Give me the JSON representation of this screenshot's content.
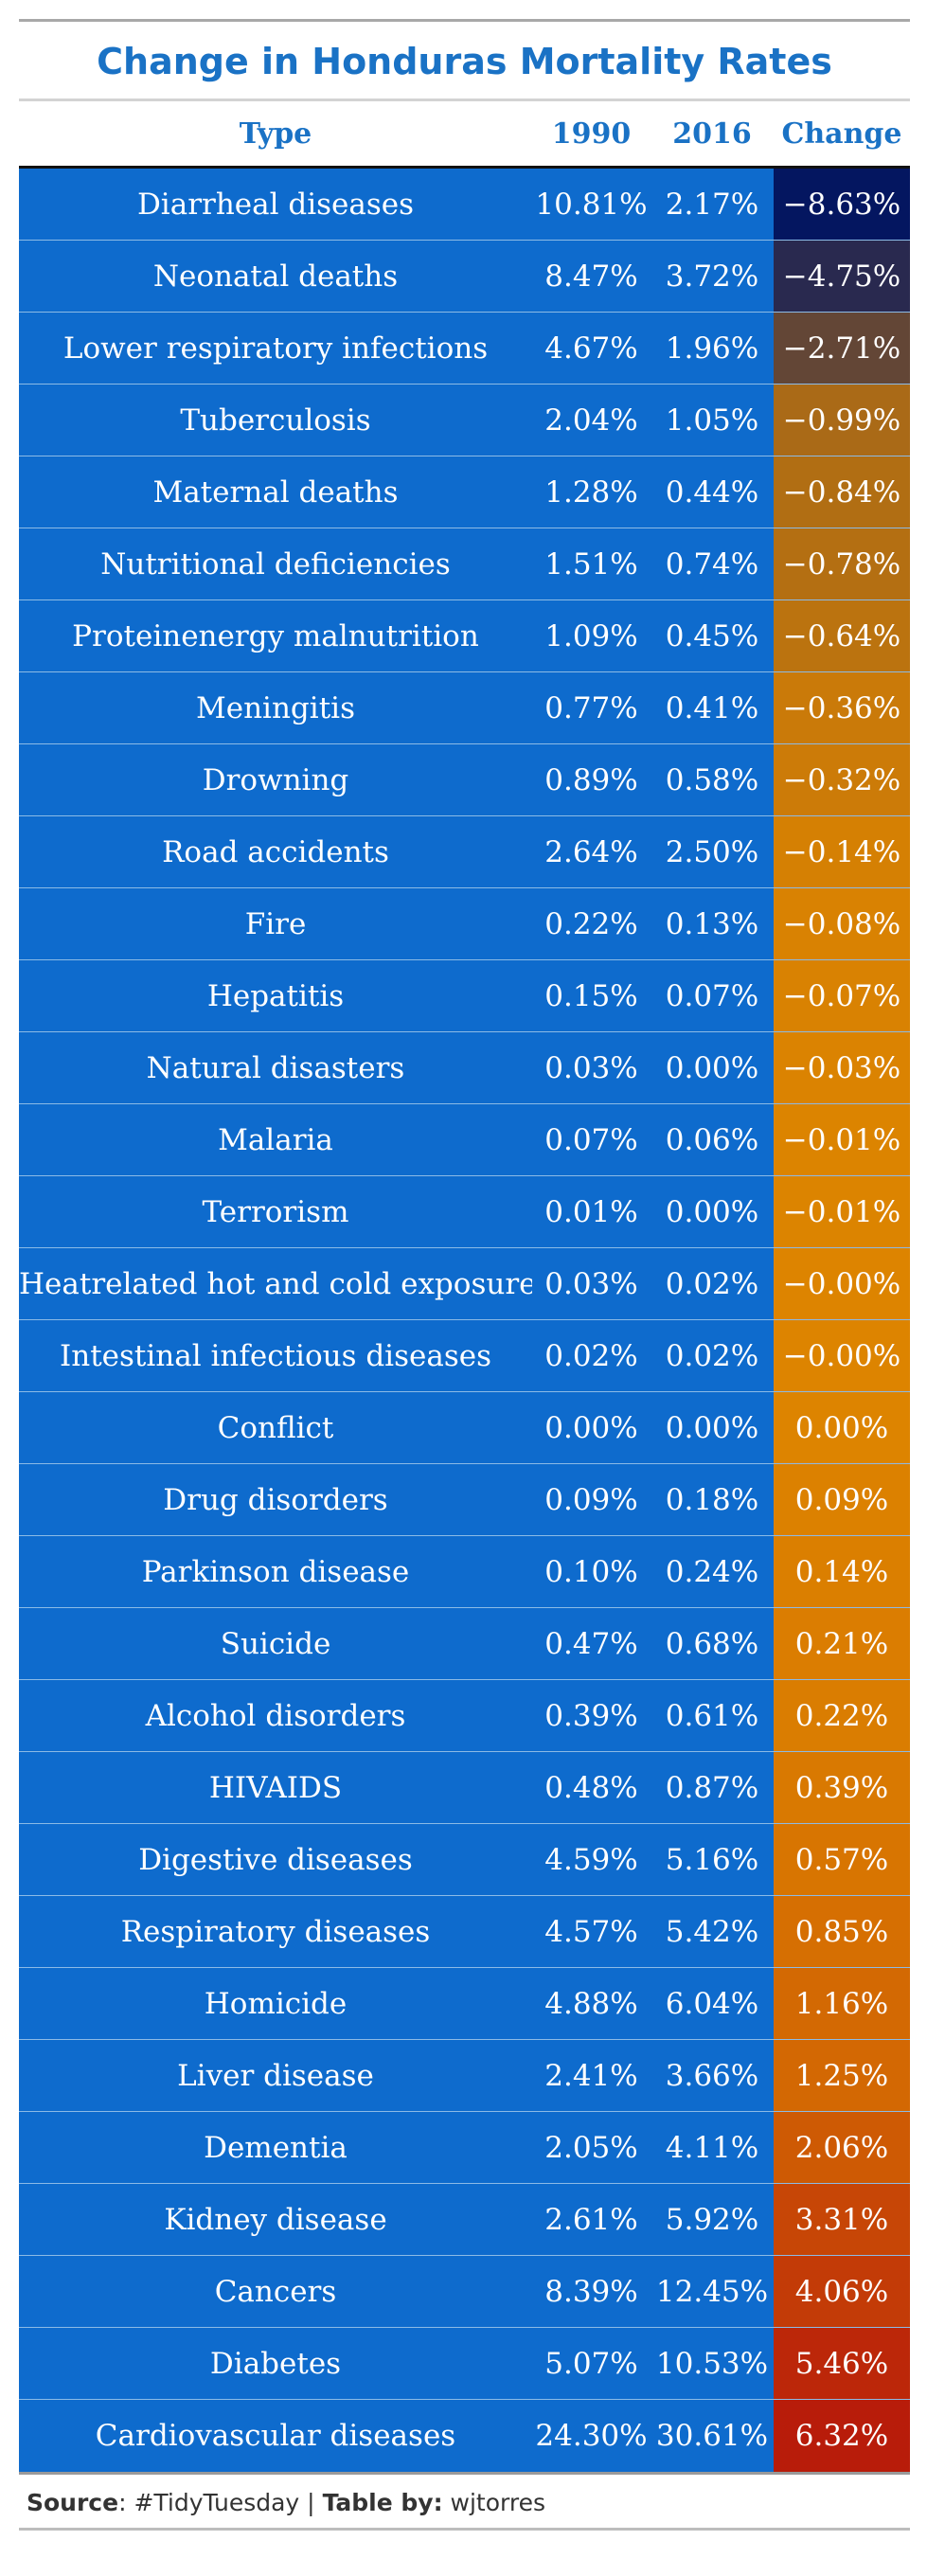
{
  "title": "Change in Honduras Mortality Rates",
  "source": {
    "label_source": "Source",
    "source_text": ": #TidyTuesday | ",
    "label_table": "Table by:",
    "author": " wjtorres"
  },
  "colors": {
    "title": "#1a72c5",
    "row_fill": "#0e6bcd",
    "scale_low": "#041660",
    "scale_mid": "#dd8400",
    "scale_high": "#b81c0a"
  },
  "chart_data": {
    "type": "table",
    "title": "Change in Honduras Mortality Rates",
    "columns": [
      "Type",
      "1990",
      "2016",
      "Change"
    ],
    "rows": [
      {
        "type": "Diarrheal diseases",
        "y1990": "10.81%",
        "y2016": "2.17%",
        "change": "−8.63%",
        "change_value": -8.63
      },
      {
        "type": "Neonatal deaths",
        "y1990": "8.47%",
        "y2016": "3.72%",
        "change": "−4.75%",
        "change_value": -4.75
      },
      {
        "type": "Lower respiratory infections",
        "y1990": "4.67%",
        "y2016": "1.96%",
        "change": "−2.71%",
        "change_value": -2.71
      },
      {
        "type": "Tuberculosis",
        "y1990": "2.04%",
        "y2016": "1.05%",
        "change": "−0.99%",
        "change_value": -0.99
      },
      {
        "type": "Maternal deaths",
        "y1990": "1.28%",
        "y2016": "0.44%",
        "change": "−0.84%",
        "change_value": -0.84
      },
      {
        "type": "Nutritional deficiencies",
        "y1990": "1.51%",
        "y2016": "0.74%",
        "change": "−0.78%",
        "change_value": -0.78
      },
      {
        "type": "Proteinenergy malnutrition",
        "y1990": "1.09%",
        "y2016": "0.45%",
        "change": "−0.64%",
        "change_value": -0.64
      },
      {
        "type": "Meningitis",
        "y1990": "0.77%",
        "y2016": "0.41%",
        "change": "−0.36%",
        "change_value": -0.36
      },
      {
        "type": "Drowning",
        "y1990": "0.89%",
        "y2016": "0.58%",
        "change": "−0.32%",
        "change_value": -0.32
      },
      {
        "type": "Road accidents",
        "y1990": "2.64%",
        "y2016": "2.50%",
        "change": "−0.14%",
        "change_value": -0.14
      },
      {
        "type": "Fire",
        "y1990": "0.22%",
        "y2016": "0.13%",
        "change": "−0.08%",
        "change_value": -0.08
      },
      {
        "type": "Hepatitis",
        "y1990": "0.15%",
        "y2016": "0.07%",
        "change": "−0.07%",
        "change_value": -0.07
      },
      {
        "type": "Natural disasters",
        "y1990": "0.03%",
        "y2016": "0.00%",
        "change": "−0.03%",
        "change_value": -0.03
      },
      {
        "type": "Malaria",
        "y1990": "0.07%",
        "y2016": "0.06%",
        "change": "−0.01%",
        "change_value": -0.01
      },
      {
        "type": "Terrorism",
        "y1990": "0.01%",
        "y2016": "0.00%",
        "change": "−0.01%",
        "change_value": -0.01
      },
      {
        "type": "Heatrelated hot and cold exposure",
        "y1990": "0.03%",
        "y2016": "0.02%",
        "change": "−0.00%",
        "change_value": 0.0
      },
      {
        "type": "Intestinal infectious diseases",
        "y1990": "0.02%",
        "y2016": "0.02%",
        "change": "−0.00%",
        "change_value": 0.0
      },
      {
        "type": "Conflict",
        "y1990": "0.00%",
        "y2016": "0.00%",
        "change": "0.00%",
        "change_value": 0.0
      },
      {
        "type": "Drug disorders",
        "y1990": "0.09%",
        "y2016": "0.18%",
        "change": "0.09%",
        "change_value": 0.09
      },
      {
        "type": "Parkinson disease",
        "y1990": "0.10%",
        "y2016": "0.24%",
        "change": "0.14%",
        "change_value": 0.14
      },
      {
        "type": "Suicide",
        "y1990": "0.47%",
        "y2016": "0.68%",
        "change": "0.21%",
        "change_value": 0.21
      },
      {
        "type": "Alcohol disorders",
        "y1990": "0.39%",
        "y2016": "0.61%",
        "change": "0.22%",
        "change_value": 0.22
      },
      {
        "type": "HIVAIDS",
        "y1990": "0.48%",
        "y2016": "0.87%",
        "change": "0.39%",
        "change_value": 0.39
      },
      {
        "type": "Digestive diseases",
        "y1990": "4.59%",
        "y2016": "5.16%",
        "change": "0.57%",
        "change_value": 0.57
      },
      {
        "type": "Respiratory diseases",
        "y1990": "4.57%",
        "y2016": "5.42%",
        "change": "0.85%",
        "change_value": 0.85
      },
      {
        "type": "Homicide",
        "y1990": "4.88%",
        "y2016": "6.04%",
        "change": "1.16%",
        "change_value": 1.16
      },
      {
        "type": "Liver disease",
        "y1990": "2.41%",
        "y2016": "3.66%",
        "change": "1.25%",
        "change_value": 1.25
      },
      {
        "type": "Dementia",
        "y1990": "2.05%",
        "y2016": "4.11%",
        "change": "2.06%",
        "change_value": 2.06
      },
      {
        "type": "Kidney disease",
        "y1990": "2.61%",
        "y2016": "5.92%",
        "change": "3.31%",
        "change_value": 3.31
      },
      {
        "type": "Cancers",
        "y1990": "8.39%",
        "y2016": "12.45%",
        "change": "4.06%",
        "change_value": 4.06
      },
      {
        "type": "Diabetes",
        "y1990": "5.07%",
        "y2016": "10.53%",
        "change": "5.46%",
        "change_value": 5.46
      },
      {
        "type": "Cardiovascular diseases",
        "y1990": "24.30%",
        "y2016": "30.61%",
        "change": "6.32%",
        "change_value": 6.32
      }
    ]
  }
}
